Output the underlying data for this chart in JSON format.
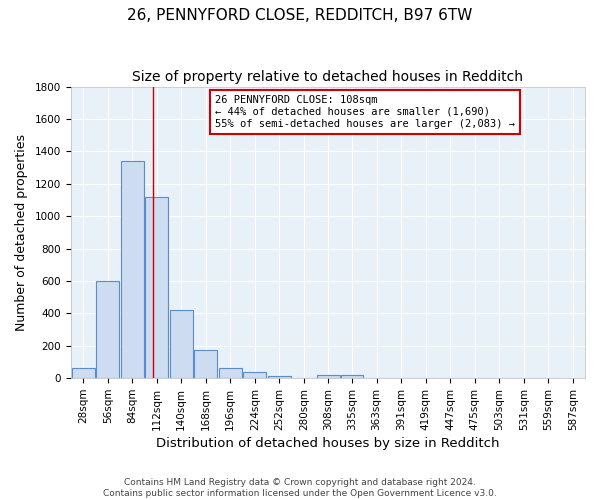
{
  "title1": "26, PENNYFORD CLOSE, REDDITCH, B97 6TW",
  "title2": "Size of property relative to detached houses in Redditch",
  "xlabel": "Distribution of detached houses by size in Redditch",
  "ylabel": "Number of detached properties",
  "bar_values": [
    60,
    600,
    1340,
    1120,
    420,
    175,
    60,
    40,
    15,
    0,
    20,
    20,
    0,
    0,
    0,
    0,
    0,
    0,
    0,
    0
  ],
  "bin_labels": [
    "28sqm",
    "56sqm",
    "84sqm",
    "112sqm",
    "140sqm",
    "168sqm",
    "196sqm",
    "224sqm",
    "252sqm",
    "280sqm",
    "308sqm",
    "335sqm",
    "363sqm",
    "391sqm",
    "419sqm",
    "447sqm",
    "475sqm",
    "503sqm",
    "531sqm",
    "559sqm",
    "587sqm"
  ],
  "bar_color": "#cddcf0",
  "bar_edge_color": "#5b8dc8",
  "vline_x": 108,
  "vline_color": "#cc0000",
  "annotation_line1": "26 PENNYFORD CLOSE: 108sqm",
  "annotation_line2": "← 44% of detached houses are smaller (1,690)",
  "annotation_line3": "55% of semi-detached houses are larger (2,083) →",
  "annotation_box_color": "white",
  "annotation_box_edge": "#cc0000",
  "ylim": [
    0,
    1800
  ],
  "yticks": [
    0,
    200,
    400,
    600,
    800,
    1000,
    1200,
    1400,
    1600,
    1800
  ],
  "background_color": "#e8f0f8",
  "footer_text": "Contains HM Land Registry data © Crown copyright and database right 2024.\nContains public sector information licensed under the Open Government Licence v3.0.",
  "title1_fontsize": 11,
  "title2_fontsize": 10,
  "xlabel_fontsize": 9.5,
  "ylabel_fontsize": 9,
  "tick_fontsize": 7.5,
  "footer_fontsize": 6.5
}
